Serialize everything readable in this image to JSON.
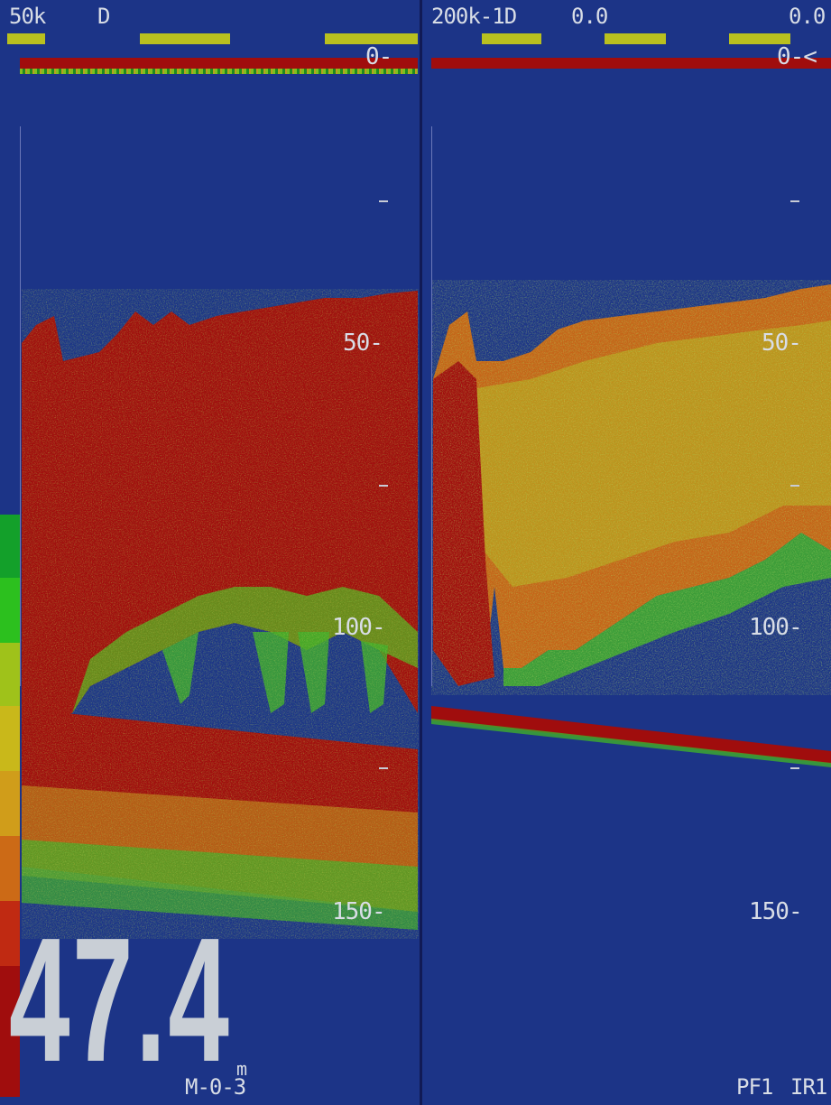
{
  "left_panel": {
    "frequency_label": "50k",
    "mode_label": "D",
    "zero_label": "0-",
    "scale_labels": [
      "50-",
      "100-",
      "150-"
    ],
    "depth_value": "47.4",
    "depth_unit": "m",
    "mode_code": "M-0-3"
  },
  "right_panel": {
    "frequency_label": "200k-1D",
    "readout_1": "0.0",
    "readout_2": "0.0",
    "zero_label": "0-<",
    "scale_labels": [
      "50-",
      "100-",
      "150-"
    ],
    "status_pf": "PF1",
    "status_ir": "IR1"
  },
  "colors": {
    "background": "#1c3487",
    "strong_echo": "#a00d0d",
    "medium_echo": "#c7a21c",
    "weak_echo": "#3fb81f",
    "indicator_bar": "#b9c01f"
  },
  "color_scale": [
    "#13a02a",
    "#2cc01e",
    "#9fc21a",
    "#c9b81a",
    "#d09d1a",
    "#cc6a16",
    "#c02a12",
    "#a00d0d"
  ]
}
